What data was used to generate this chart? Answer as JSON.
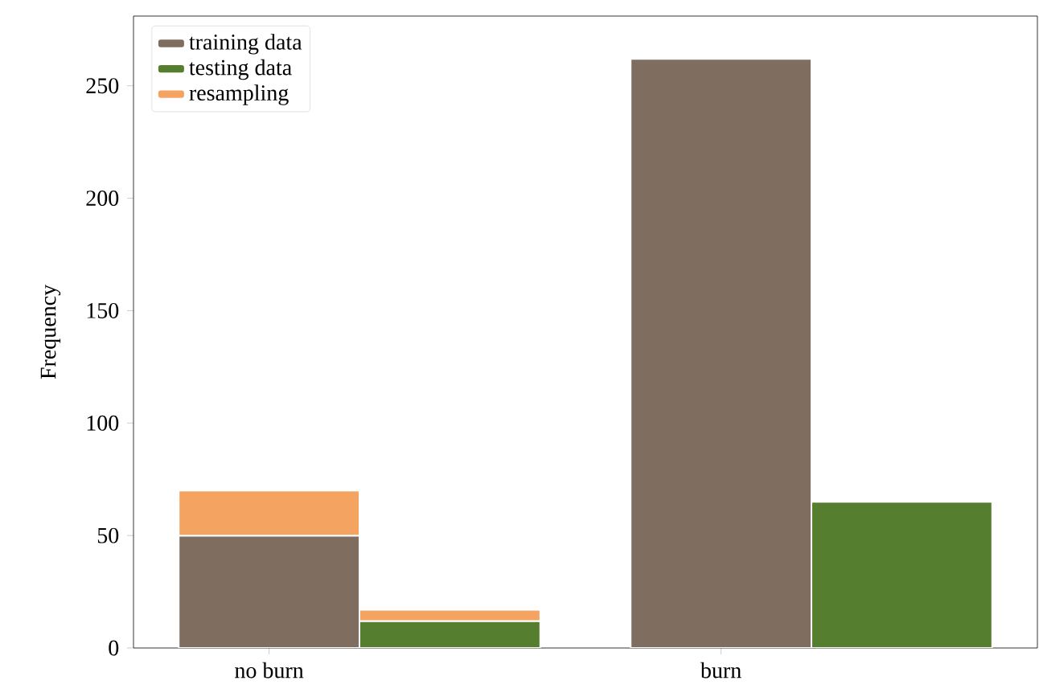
{
  "chart_data": {
    "type": "bar",
    "ylabel": "Frequency",
    "stacked": true,
    "categories": [
      "no burn",
      null,
      "burn",
      null
    ],
    "series": [
      {
        "name": "training data",
        "color": "#7f6e5f",
        "values": [
          50,
          null,
          262,
          null
        ]
      },
      {
        "name": "testing data",
        "color": "#557f2e",
        "values": [
          null,
          12,
          null,
          65
        ]
      },
      {
        "name": "resampling",
        "color": "#f4a460",
        "values": [
          20,
          5,
          null,
          null
        ]
      }
    ],
    "ylim": [
      0,
      281
    ],
    "yticks": [
      0,
      50,
      100,
      150,
      200,
      250
    ],
    "grid": false,
    "legend": "top left"
  }
}
